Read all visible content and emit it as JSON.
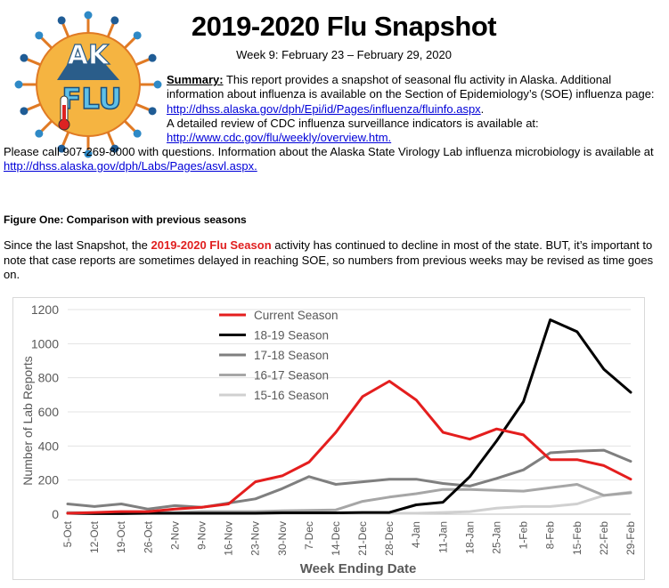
{
  "header": {
    "title": "2019-2020 Flu Snapshot",
    "week_line": "Week 9: February 23 – February 29, 2020",
    "logo": {
      "text_top": "AK",
      "text_bottom": "FLU",
      "bg_color": "#f5b441",
      "icon": "alaska-flu-logo"
    }
  },
  "summary": {
    "label": "Summary:",
    "text1": " This report provides a snapshot of seasonal flu activity in Alaska. Additional information about influenza is available on the Section of Epidemiology’s (SOE) influenza page: ",
    "link1": "http://dhss.alaska.gov/dph/Epi/id/Pages/influenza/fluinfo.aspx",
    "text2": ".",
    "text3": "A detailed review of CDC influenza surveillance indicators is available at:",
    "link2": "http://www.cdc.gov/flu/weekly/overview.htm."
  },
  "contact": {
    "text1": "Please call 907-269-8000 with questions. Information about the Alaska State Virology Lab influenza microbiology is available at ",
    "link": "http://dhss.alaska.gov/dph/Labs/Pages/asvl.aspx."
  },
  "figure": {
    "heading": "Figure One: Comparison with previous seasons",
    "desc_pre": "Since the last Snapshot, the ",
    "desc_highlight": "2019-2020 Flu Season",
    "desc_post": " activity has continued to decline in most of the state.  BUT, it’s important to note that case reports are sometimes delayed in reaching SOE, so numbers from previous weeks may be revised as time goes on."
  },
  "chart_data": {
    "type": "line",
    "xlabel": "Week Ending Date",
    "ylabel": "Number of Lab Reports",
    "ylim": [
      0,
      1200
    ],
    "yticks": [
      0,
      200,
      400,
      600,
      800,
      1000,
      1200
    ],
    "grid": true,
    "legend": "top-left",
    "categories": [
      "5-Oct",
      "12-Oct",
      "19-Oct",
      "26-Oct",
      "2-Nov",
      "9-Nov",
      "16-Nov",
      "23-Nov",
      "30-Nov",
      "7-Dec",
      "14-Dec",
      "21-Dec",
      "28-Dec",
      "4-Jan",
      "11-Jan",
      "18-Jan",
      "25-Jan",
      "1-Feb",
      "8-Feb",
      "15-Feb",
      "22-Feb",
      "29-Feb"
    ],
    "series": [
      {
        "name": "Current Season",
        "color": "#e41e1e",
        "width": 3,
        "values": [
          5,
          10,
          15,
          15,
          30,
          40,
          60,
          190,
          225,
          305,
          480,
          690,
          780,
          670,
          480,
          440,
          500,
          465,
          320,
          320,
          285,
          205
        ]
      },
      {
        "name": "18-19 Season",
        "color": "#000000",
        "width": 3,
        "values": [
          5,
          3,
          3,
          5,
          5,
          5,
          5,
          5,
          8,
          8,
          8,
          10,
          10,
          55,
          70,
          220,
          430,
          660,
          1140,
          1070,
          850,
          715
        ]
      },
      {
        "name": "17-18 Season",
        "color": "#7f7f7f",
        "width": 3,
        "values": [
          60,
          45,
          60,
          30,
          50,
          40,
          65,
          90,
          150,
          220,
          175,
          190,
          205,
          205,
          180,
          165,
          210,
          260,
          360,
          370,
          375,
          310
        ]
      },
      {
        "name": "16-17 Season",
        "color": "#a6a6a6",
        "width": 3,
        "values": [
          10,
          8,
          10,
          10,
          10,
          15,
          15,
          15,
          20,
          22,
          25,
          75,
          100,
          120,
          145,
          145,
          140,
          135,
          155,
          175,
          110,
          125
        ]
      },
      {
        "name": "15-16 Season",
        "color": "#d0d0d0",
        "width": 3,
        "values": [
          5,
          5,
          5,
          5,
          5,
          5,
          5,
          5,
          5,
          5,
          5,
          5,
          5,
          5,
          10,
          15,
          35,
          45,
          45,
          60,
          110,
          130
        ]
      }
    ]
  }
}
